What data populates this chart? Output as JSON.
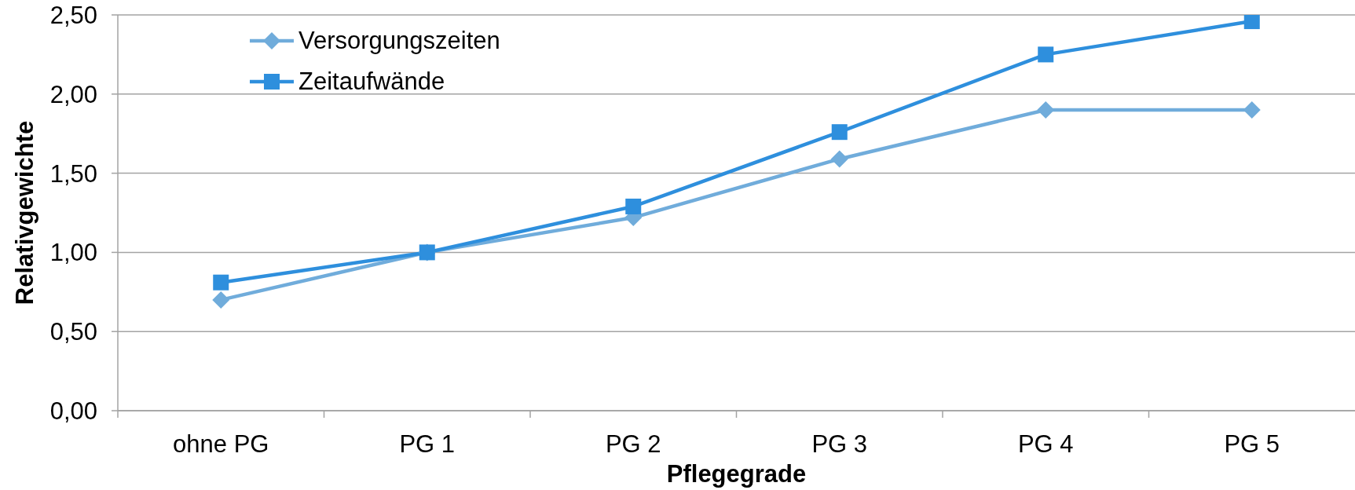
{
  "chart_data": {
    "type": "line",
    "xlabel": "Pflegegrade",
    "ylabel": "Relativgewichte",
    "categories": [
      "ohne PG",
      "PG 1",
      "PG 2",
      "PG 3",
      "PG 4",
      "PG 5"
    ],
    "series": [
      {
        "name": "Versorgungszeiten",
        "color": "#70acdb",
        "marker": "diamond",
        "values": [
          0.7,
          1.0,
          1.22,
          1.59,
          1.9,
          1.9
        ]
      },
      {
        "name": "Zeitaufwände",
        "color": "#2e8fdd",
        "marker": "square",
        "values": [
          0.81,
          1.0,
          1.29,
          1.76,
          2.25,
          2.46
        ]
      }
    ],
    "ylim": [
      0,
      2.5
    ],
    "yticks": [
      {
        "value": 0,
        "label": "0,00"
      },
      {
        "value": 0.5,
        "label": "0,50"
      },
      {
        "value": 1,
        "label": "1,00"
      },
      {
        "value": 1.5,
        "label": "1,50"
      },
      {
        "value": 2,
        "label": "2,00"
      },
      {
        "value": 2.5,
        "label": "2,50"
      }
    ],
    "grid": "y",
    "legend": "top left",
    "line_style": "solid"
  }
}
